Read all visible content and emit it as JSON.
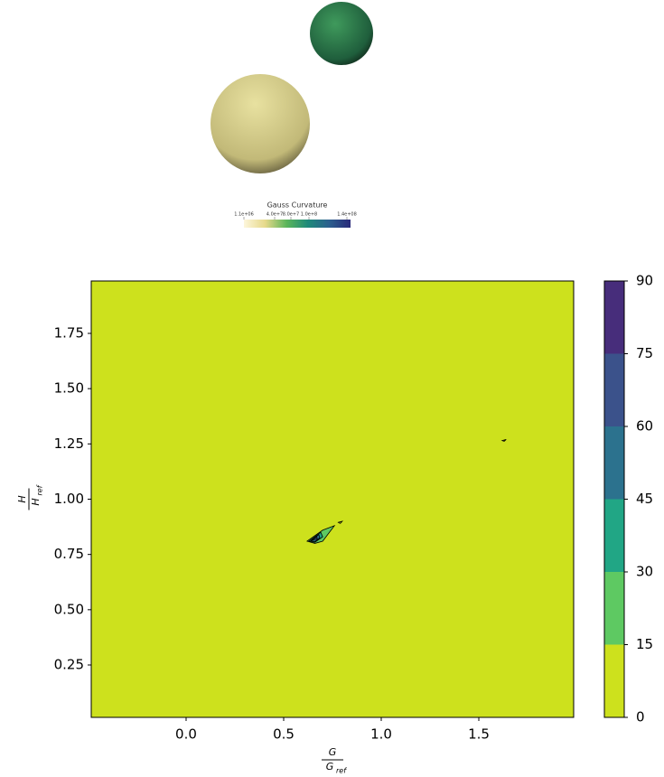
{
  "render": {
    "colorbar_title": "Gauss Curvature",
    "colorbar_labels": [
      "1.1e+06",
      "4.0e+7",
      "8.0e+7",
      "1.0e+8",
      "1.4e+08"
    ]
  },
  "chart_data": {
    "type": "contour",
    "xlabel": {
      "numerator": "G",
      "denominator": "G",
      "subscript": "ref"
    },
    "ylabel": {
      "numerator": "H",
      "denominator": "H",
      "subscript": "ref"
    },
    "xlim": [
      -0.486,
      1.986
    ],
    "ylim": [
      0.013,
      1.987
    ],
    "xticks": [
      {
        "value": 0,
        "label": "0.0"
      },
      {
        "value": 0.5,
        "label": "0.5"
      },
      {
        "value": 1,
        "label": "1.0"
      },
      {
        "value": 1.5,
        "label": "1.5"
      }
    ],
    "yticks": [
      0.25,
      {
        "value": 0.5,
        "label": "0.50"
      },
      0.75,
      {
        "value": 1,
        "label": "1.00"
      },
      1.25,
      {
        "value": 1.5,
        "label": "1.50"
      },
      1.75
    ],
    "levels": [
      0,
      15,
      30,
      45,
      60,
      75,
      90
    ],
    "colors": [
      "#cde11d",
      "#5ec962",
      "#21a685",
      "#2c728e",
      "#3b528b",
      "#472d7b"
    ],
    "regions": [
      {
        "level": 15,
        "points": [
          [
            0.62,
            0.81
          ],
          [
            0.7,
            0.86
          ],
          [
            0.76,
            0.88
          ],
          [
            0.7,
            0.81
          ],
          [
            0.66,
            0.8
          ]
        ]
      },
      {
        "level": 30,
        "points": [
          [
            0.63,
            0.81
          ],
          [
            0.69,
            0.85
          ],
          [
            0.7,
            0.83
          ],
          [
            0.66,
            0.805
          ]
        ]
      },
      {
        "level": 45,
        "points": [
          [
            0.64,
            0.812
          ],
          [
            0.68,
            0.84
          ],
          [
            0.685,
            0.825
          ],
          [
            0.66,
            0.808
          ]
        ]
      },
      {
        "level": 60,
        "points": [
          [
            0.645,
            0.815
          ],
          [
            0.67,
            0.83
          ],
          [
            0.672,
            0.82
          ]
        ]
      },
      {
        "level": 0,
        "points": [
          [
            0.78,
            0.895
          ],
          [
            0.8,
            0.9
          ],
          [
            0.79,
            0.89
          ]
        ]
      },
      {
        "level": 0,
        "points": [
          [
            1.62,
            1.265
          ],
          [
            1.64,
            1.27
          ],
          [
            1.63,
            1.262
          ]
        ]
      }
    ]
  }
}
